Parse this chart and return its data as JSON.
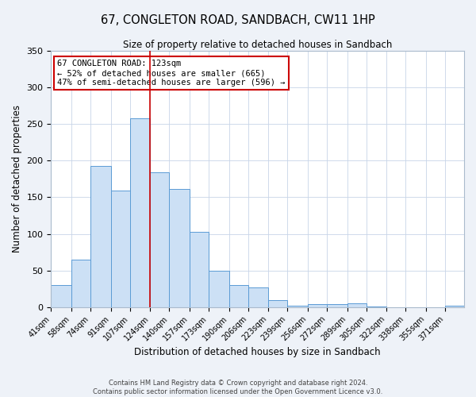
{
  "title": "67, CONGLETON ROAD, SANDBACH, CW11 1HP",
  "subtitle": "Size of property relative to detached houses in Sandbach",
  "xlabel": "Distribution of detached houses by size in Sandbach",
  "ylabel": "Number of detached properties",
  "bar_labels": [
    "41sqm",
    "58sqm",
    "74sqm",
    "91sqm",
    "107sqm",
    "124sqm",
    "140sqm",
    "157sqm",
    "173sqm",
    "190sqm",
    "206sqm",
    "223sqm",
    "239sqm",
    "256sqm",
    "272sqm",
    "289sqm",
    "305sqm",
    "322sqm",
    "338sqm",
    "355sqm",
    "371sqm"
  ],
  "bar_values": [
    30,
    65,
    193,
    159,
    258,
    184,
    161,
    103,
    50,
    30,
    27,
    10,
    2,
    4,
    4,
    5,
    1,
    0,
    0,
    0,
    2
  ],
  "bar_color": "#cce0f5",
  "bar_edge_color": "#5b9bd5",
  "property_line_x": 124,
  "bin_edges": [
    41,
    58,
    74,
    91,
    107,
    124,
    140,
    157,
    173,
    190,
    206,
    223,
    239,
    256,
    272,
    289,
    305,
    322,
    338,
    355,
    371,
    387
  ],
  "annotation_title": "67 CONGLETON ROAD: 123sqm",
  "annotation_line1": "← 52% of detached houses are smaller (665)",
  "annotation_line2": "47% of semi-detached houses are larger (596) →",
  "vline_color": "#cc0000",
  "annotation_box_edge_color": "#cc0000",
  "ylim": [
    0,
    350
  ],
  "yticks": [
    0,
    50,
    100,
    150,
    200,
    250,
    300,
    350
  ],
  "footer1": "Contains HM Land Registry data © Crown copyright and database right 2024.",
  "footer2": "Contains public sector information licensed under the Open Government Licence v3.0.",
  "bg_color": "#eef2f8",
  "plot_bg_color": "#ffffff",
  "grid_color": "#c8d4e8"
}
